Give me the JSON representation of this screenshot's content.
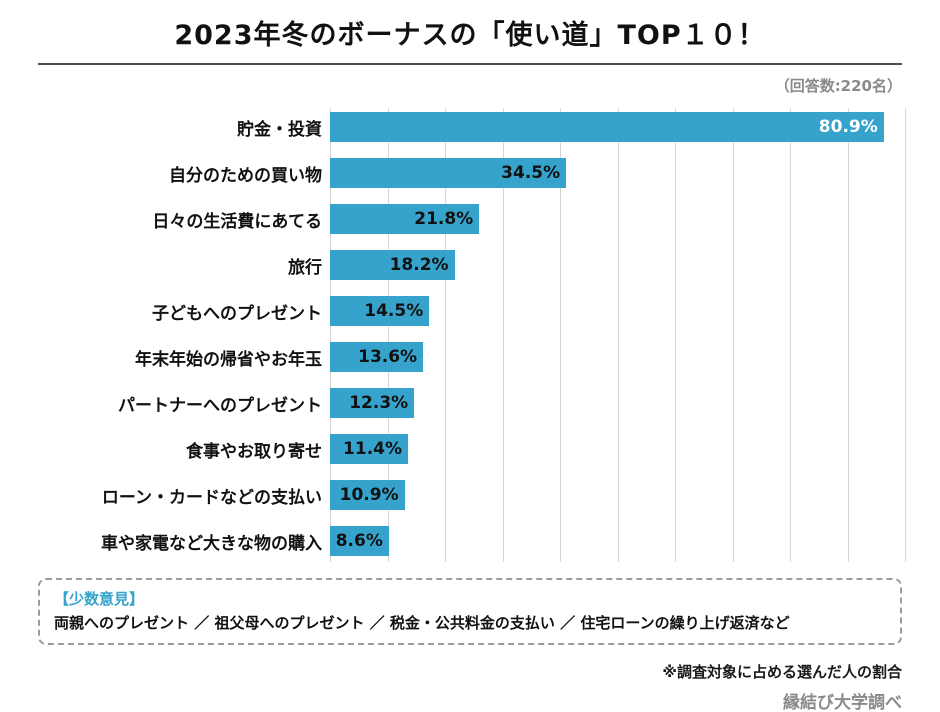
{
  "header": {
    "title": "2023年冬のボーナスの「使い道」TOP１０！",
    "respondents": "（回答数:220名）"
  },
  "chart_data": {
    "type": "bar",
    "orientation": "horizontal",
    "title": "2023年冬のボーナスの「使い道」TOP１０！",
    "unit": "%",
    "categories": [
      "貯金・投資",
      "自分のための買い物",
      "日々の生活費にあてる",
      "旅行",
      "子どもへのプレゼント",
      "年末年始の帰省やお年玉",
      "パートナーへのプレゼント",
      "食事やお取り寄せ",
      "ローン・カードなどの支払い",
      "車や家電など大きな物の購入"
    ],
    "values": [
      80.9,
      34.5,
      21.8,
      18.2,
      14.5,
      13.6,
      12.3,
      11.4,
      10.9,
      8.6
    ],
    "value_labels": [
      "80.9%",
      "34.5%",
      "21.8%",
      "18.2%",
      "14.5%",
      "13.6%",
      "12.3%",
      "11.4%",
      "10.9%",
      "8.6%"
    ],
    "axis_max": 84,
    "gridline_count": 11,
    "grid": true,
    "legend": "none",
    "bar_color": "#36a3cc",
    "gridline_color": "#d6d6d6",
    "value_label_color": "#111111",
    "value_label_color_first_bar": "#ffffff"
  },
  "minority": {
    "heading": "【少数意見】",
    "text": "両親へのプレゼント ／ 祖父母へのプレゼント ／ 税金・公共料金の支払い ／ 住宅ローンの繰り上げ返済など"
  },
  "footer": {
    "note": "※調査対象に占める選んだ人の割合",
    "source": "縁結び大学調べ"
  },
  "colors": {
    "accent": "#35a3cc",
    "title_text": "#111111",
    "muted_text": "#8a8a8a",
    "divider": "#4d4d4d"
  }
}
